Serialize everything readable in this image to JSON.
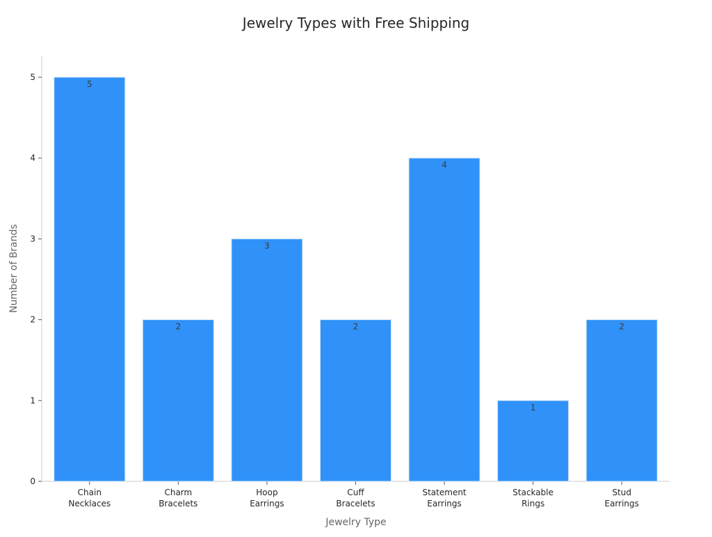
{
  "chart_data": {
    "type": "bar",
    "title": "Jewelry Types with Free Shipping",
    "xlabel": "Jewelry Type",
    "ylabel": "Number of Brands",
    "categories": [
      [
        "Chain",
        "Necklaces"
      ],
      [
        "Charm",
        "Bracelets"
      ],
      [
        "Hoop",
        "Earrings"
      ],
      [
        "Cuff",
        "Bracelets"
      ],
      [
        "Statement",
        "Earrings"
      ],
      [
        "Stackable",
        "Rings"
      ],
      [
        "Stud",
        "Earrings"
      ]
    ],
    "values": [
      5,
      2,
      3,
      2,
      4,
      1,
      2
    ],
    "data_labels": [
      "5",
      "2",
      "3",
      "2",
      "4",
      "1",
      "2"
    ],
    "ylim": [
      0,
      5
    ],
    "yticks": [
      "0",
      "1",
      "2",
      "3",
      "4",
      "5"
    ],
    "grid": false,
    "legend": "none",
    "colors": {
      "bar": "#3092f8",
      "text": "#262626",
      "axis": "#cccccc"
    }
  }
}
